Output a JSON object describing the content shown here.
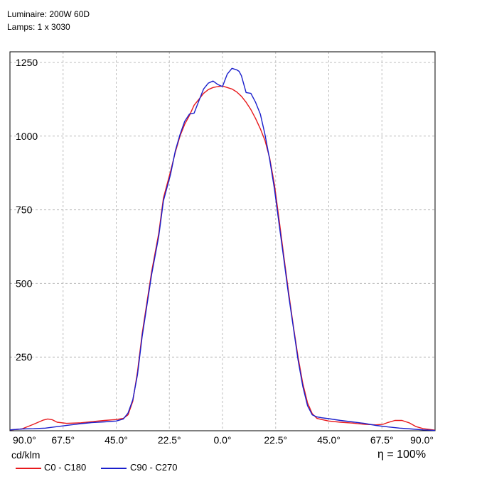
{
  "header": {
    "luminaire": "Luminaire: 200W 60D",
    "lamps": "Lamps: 1 x 3030"
  },
  "unit_label": "cd/klm",
  "efficiency_label": "η = 100%",
  "colors": {
    "c0_c180": "#e8191c",
    "c90_c270": "#1a1fcc",
    "grid": "#bdbdbd"
  },
  "chart_data": {
    "type": "line",
    "title": "",
    "xlabel": "",
    "ylabel": "cd/klm",
    "xlim": [
      -90,
      90
    ],
    "ylim": [
      0,
      1250
    ],
    "yticks": [
      250,
      500,
      750,
      1000,
      1250
    ],
    "xticks": [
      -90,
      -67.5,
      -45,
      -22.5,
      0,
      22.5,
      45,
      67.5,
      90
    ],
    "xtick_labels": [
      "90.0°",
      "67.5°",
      "45.0°",
      "22.5°",
      "0.0°",
      "22.5°",
      "45.0°",
      "67.5°",
      "90.0°"
    ],
    "grid": true,
    "legend_position": "bottom-left",
    "series": [
      {
        "name": "C0 - C180",
        "color": "#e8191c",
        "x": [
          -90,
          -85,
          -80,
          -76,
          -74,
          -72,
          -70,
          -66,
          -60,
          -55,
          -50,
          -45,
          -42,
          -40,
          -38,
          -36,
          -34,
          -30,
          -27,
          -25,
          -22,
          -20,
          -18,
          -16,
          -14,
          -12,
          -10,
          -8,
          -6,
          -4,
          -2,
          0,
          2,
          4,
          6,
          8,
          10,
          12,
          14,
          16,
          18,
          20,
          22,
          24,
          26,
          28,
          30,
          32,
          34,
          36,
          38,
          40,
          42,
          45,
          50,
          55,
          60,
          65,
          68,
          70,
          73,
          76,
          79,
          82,
          85,
          88,
          90
        ],
        "y": [
          3,
          6,
          22,
          36,
          40,
          37,
          29,
          25,
          27,
          31,
          35,
          38,
          42,
          54,
          100,
          200,
          330,
          540,
          670,
          790,
          880,
          945,
          1000,
          1040,
          1070,
          1105,
          1125,
          1145,
          1158,
          1165,
          1168,
          1170,
          1165,
          1160,
          1150,
          1135,
          1115,
          1090,
          1060,
          1025,
          985,
          925,
          835,
          715,
          590,
          470,
          355,
          250,
          160,
          95,
          58,
          42,
          38,
          33,
          29,
          26,
          22,
          20,
          22,
          28,
          35,
          35,
          27,
          14,
          7,
          4,
          2
        ]
      },
      {
        "name": "C90 - C270",
        "color": "#1a1fcc",
        "x": [
          -90,
          -85,
          -80,
          -75,
          -70,
          -65,
          -60,
          -55,
          -50,
          -45,
          -42,
          -40,
          -38,
          -36,
          -34,
          -30,
          -27,
          -25,
          -22,
          -20,
          -18,
          -16,
          -14,
          -12,
          -10,
          -8,
          -6,
          -4,
          -2,
          0,
          2,
          4,
          6,
          7,
          8,
          10,
          12,
          14,
          16,
          18,
          20,
          22,
          24,
          26,
          28,
          30,
          32,
          34,
          36,
          38,
          40,
          42,
          45,
          50,
          55,
          60,
          65,
          70,
          75,
          80,
          85,
          88,
          90
        ],
        "y": [
          3,
          6,
          7,
          9,
          14,
          19,
          24,
          28,
          30,
          33,
          40,
          60,
          105,
          190,
          320,
          530,
          660,
          780,
          870,
          950,
          1005,
          1050,
          1075,
          1078,
          1120,
          1160,
          1180,
          1187,
          1175,
          1168,
          1210,
          1230,
          1225,
          1220,
          1205,
          1148,
          1145,
          1115,
          1075,
          1005,
          920,
          820,
          700,
          580,
          460,
          350,
          240,
          150,
          85,
          54,
          47,
          44,
          41,
          35,
          30,
          25,
          18,
          13,
          9,
          6,
          3,
          2,
          1
        ]
      }
    ]
  }
}
